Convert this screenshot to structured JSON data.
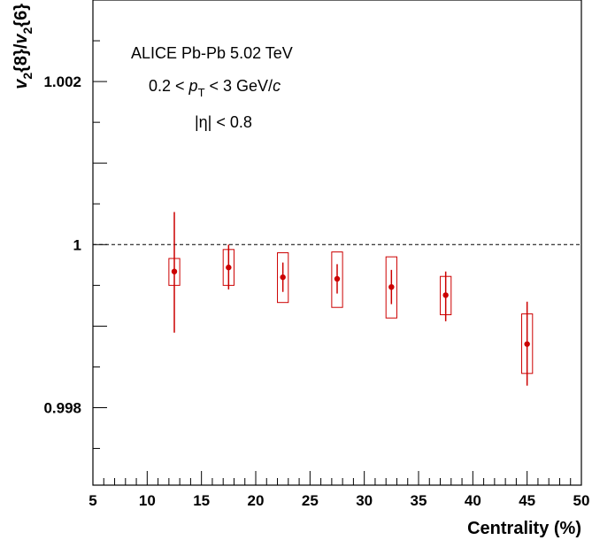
{
  "chart_data": {
    "type": "scatter",
    "xlabel": "Centrality (%)",
    "ylabel_parts": [
      "v",
      "2",
      "{8}/",
      "v",
      "2",
      "{6}"
    ],
    "xlim": [
      5,
      50
    ],
    "ylim": [
      0.99705,
      1.003
    ],
    "x_ticks": [
      5,
      10,
      15,
      20,
      25,
      30,
      35,
      40,
      45,
      50
    ],
    "y_tick_labels": [
      {
        "value": 0.998,
        "label": "0.998"
      },
      {
        "value": 1.0,
        "label": "1"
      },
      {
        "value": 1.002,
        "label": "1.002"
      }
    ],
    "reference_line": 1.0,
    "annotations": {
      "line1": "ALICE Pb-Pb 5.02 TeV",
      "line2_prefix": "0.2 < ",
      "line2_var": "p",
      "line2_sub": "T",
      "line2_suffix": " < 3 GeV/",
      "line2_unit": "c",
      "line3": "|η| < 0.8"
    },
    "colors": {
      "marker": "#cc0000",
      "stat_err": "#cc0000",
      "syst_box": "#cc0000"
    },
    "points": [
      {
        "x": 12.5,
        "y": 0.99967,
        "stat_lo": 0.99892,
        "stat_hi": 1.0004,
        "sys_lo": 0.9995,
        "sys_hi": 0.99983,
        "box_halfwidth": 0.5
      },
      {
        "x": 17.5,
        "y": 0.99972,
        "stat_lo": 0.99945,
        "stat_hi": 1.0,
        "sys_lo": 0.9995,
        "sys_hi": 0.99994,
        "box_halfwidth": 0.5
      },
      {
        "x": 22.5,
        "y": 0.9996,
        "stat_lo": 0.99942,
        "stat_hi": 0.99978,
        "sys_lo": 0.99929,
        "sys_hi": 0.9999,
        "box_halfwidth": 0.5
      },
      {
        "x": 27.5,
        "y": 0.99958,
        "stat_lo": 0.9994,
        "stat_hi": 0.99976,
        "sys_lo": 0.99923,
        "sys_hi": 0.99991,
        "box_halfwidth": 0.5
      },
      {
        "x": 32.5,
        "y": 0.99948,
        "stat_lo": 0.99927,
        "stat_hi": 0.99969,
        "sys_lo": 0.9991,
        "sys_hi": 0.99985,
        "box_halfwidth": 0.5
      },
      {
        "x": 37.5,
        "y": 0.99938,
        "stat_lo": 0.99906,
        "stat_hi": 0.99967,
        "sys_lo": 0.99914,
        "sys_hi": 0.99961,
        "box_halfwidth": 0.5
      },
      {
        "x": 45.0,
        "y": 0.99878,
        "stat_lo": 0.99827,
        "stat_hi": 0.9993,
        "sys_lo": 0.99842,
        "sys_hi": 0.99915,
        "box_halfwidth": 0.5
      }
    ]
  }
}
